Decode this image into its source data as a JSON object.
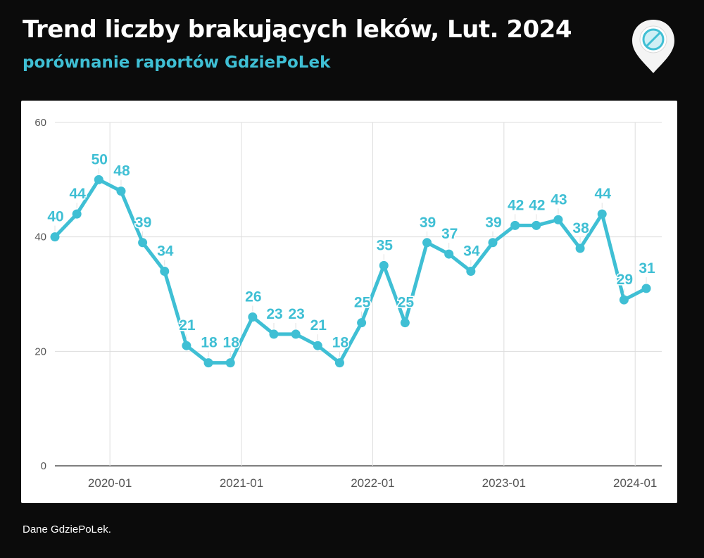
{
  "header": {
    "title": "Trend liczby brakujących leków, Lut. 2024",
    "subtitle": "porównanie raportów GdziePoLek"
  },
  "logo": {
    "icon": "pill-map-pin-icon"
  },
  "footer": {
    "source": "Dane GdziePoLek."
  },
  "colors": {
    "background": "#0b0b0b",
    "line": "#3fbfd4",
    "label": "#3fbfd4",
    "grid": "#dddddd",
    "axis_text": "#555555"
  },
  "chart_data": {
    "type": "line",
    "title": "Trend liczby brakujących leków, Lut. 2024",
    "subtitle": "porównanie raportów GdziePoLek",
    "xlabel": "",
    "ylabel": "",
    "ylim": [
      0,
      60
    ],
    "yticks": [
      0,
      20,
      40,
      60
    ],
    "xticks": [
      "2020-01",
      "2021-01",
      "2022-01",
      "2023-01",
      "2024-01"
    ],
    "grid": true,
    "legend": "none",
    "x": [
      "2019-08",
      "2019-10",
      "2019-12",
      "2020-02",
      "2020-04",
      "2020-06",
      "2020-08",
      "2020-10",
      "2020-12",
      "2021-02",
      "2021-04",
      "2021-06",
      "2021-08",
      "2021-10",
      "2021-12",
      "2022-02",
      "2022-04",
      "2022-06",
      "2022-08",
      "2022-10",
      "2022-12",
      "2023-02",
      "2023-04",
      "2023-06",
      "2023-08",
      "2023-10",
      "2023-12",
      "2024-02"
    ],
    "series": [
      {
        "values": [
          40,
          44,
          50,
          48,
          39,
          34,
          21,
          18,
          18,
          26,
          23,
          23,
          21,
          18,
          25,
          35,
          25,
          39,
          37,
          34,
          39,
          42,
          42,
          43,
          38,
          44,
          29,
          31
        ]
      }
    ]
  }
}
